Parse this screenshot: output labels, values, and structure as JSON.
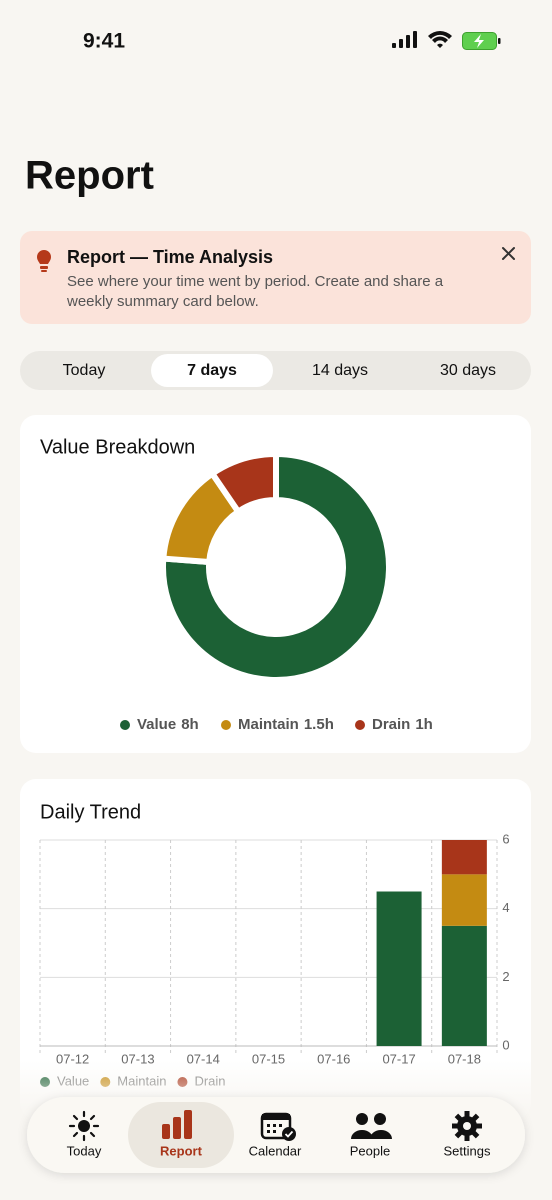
{
  "status": {
    "time": "9:41"
  },
  "header": {
    "title": "Report"
  },
  "banner": {
    "title": "Report — Time Analysis",
    "lines": [
      "See where your time went by period. Create and share a",
      "weekly summary card below."
    ]
  },
  "tabs": {
    "items": [
      {
        "label": "Today",
        "active": false
      },
      {
        "label": "7 days",
        "active": true
      },
      {
        "label": "14 days",
        "active": false
      },
      {
        "label": "30 days",
        "active": false
      }
    ]
  },
  "breakdown": {
    "type": "donut",
    "title": "Value Breakdown",
    "segments": [
      {
        "name": "Value",
        "value": 8,
        "value_label": "8h",
        "color": "#1c6135"
      },
      {
        "name": "Maintain",
        "value": 1.5,
        "value_label": "1.5h",
        "color": "#c48b12"
      },
      {
        "name": "Drain",
        "value": 1,
        "value_label": "1h",
        "color": "#a8351a"
      }
    ]
  },
  "trend": {
    "type": "bar",
    "stacked": true,
    "grid": true,
    "title": "Daily Trend",
    "categories": [
      "07-12",
      "07-13",
      "07-14",
      "07-15",
      "07-16",
      "07-17",
      "07-18"
    ],
    "series": [
      {
        "name": "Value",
        "color": "#1c6135",
        "values": [
          0,
          0,
          0,
          0,
          0,
          4.5,
          3.5
        ]
      },
      {
        "name": "Maintain",
        "color": "#c48b12",
        "values": [
          0,
          0,
          0,
          0,
          0,
          0,
          1.5
        ]
      },
      {
        "name": "Drain",
        "color": "#a8351a",
        "values": [
          0,
          0,
          0,
          0,
          0,
          0,
          1
        ]
      }
    ],
    "ylim": [
      0,
      6
    ],
    "yticks": [
      0,
      2,
      4,
      6
    ]
  },
  "nav": {
    "items": [
      {
        "label": "Today",
        "active": false
      },
      {
        "label": "Report",
        "active": true
      },
      {
        "label": "Calendar",
        "active": false
      },
      {
        "label": "People",
        "active": false
      },
      {
        "label": "Settings",
        "active": false
      }
    ]
  }
}
